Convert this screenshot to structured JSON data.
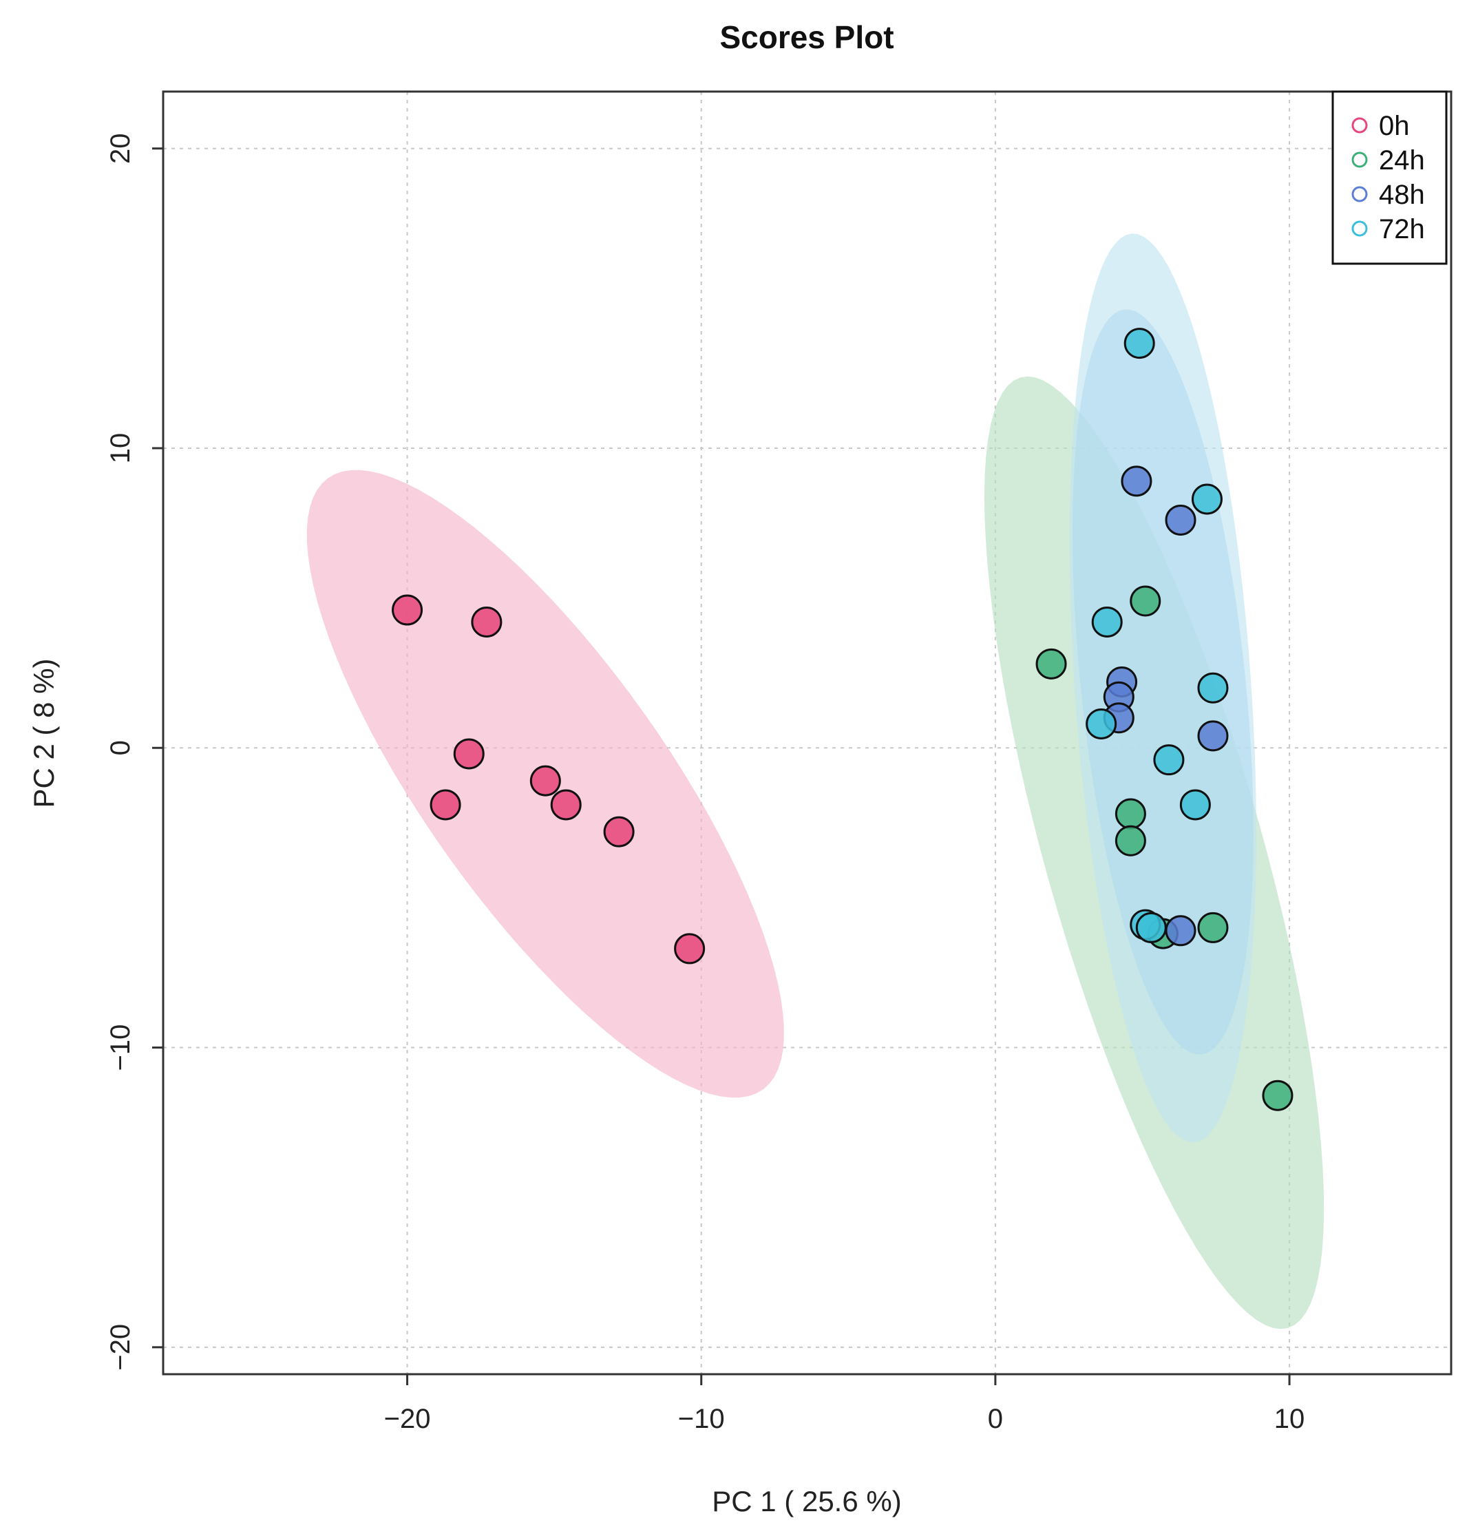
{
  "chart_data": {
    "type": "scatter",
    "title": "Scores Plot",
    "xlabel": "PC 1 ( 25.6 %)",
    "ylabel": "PC 2 ( 8 %)",
    "xlim": [
      -28.3,
      15.5
    ],
    "ylim": [
      -20.9,
      21.9
    ],
    "xticks": [
      -20,
      -10,
      0,
      10
    ],
    "yticks": [
      -20,
      -10,
      0,
      10,
      20
    ],
    "xtick_labels": [
      "−20",
      "−10",
      "0",
      "10"
    ],
    "ytick_labels": [
      "−20",
      "−10",
      "0",
      "10",
      "20"
    ],
    "grid": true,
    "legend_position": "top-right",
    "series": [
      {
        "name": "0h",
        "color": "#e8457a",
        "ellipse_color": "#f5b3c9",
        "ellipse": {
          "cx": -15.3,
          "cy": -1.2,
          "rx": 12.6,
          "ry": 4.1,
          "angle_deg": -54
        },
        "points": [
          [
            -20.0,
            4.6
          ],
          [
            -17.3,
            4.2
          ],
          [
            -17.9,
            -0.2
          ],
          [
            -18.7,
            -1.9
          ],
          [
            -15.3,
            -1.1
          ],
          [
            -14.6,
            -1.9
          ],
          [
            -12.8,
            -2.8
          ],
          [
            -10.4,
            -6.7
          ]
        ]
      },
      {
        "name": "24h",
        "color": "#3db07a",
        "ellipse_color": "#b6ddc0",
        "ellipse": {
          "cx": 5.4,
          "cy": -3.5,
          "rx": 16.5,
          "ry": 3.7,
          "angle_deg": -74
        },
        "points": [
          [
            1.9,
            2.8
          ],
          [
            5.1,
            4.9
          ],
          [
            4.6,
            -2.2
          ],
          [
            4.6,
            -3.1
          ],
          [
            5.7,
            -6.2
          ],
          [
            7.4,
            -6.0
          ],
          [
            9.6,
            -11.6
          ]
        ]
      },
      {
        "name": "48h",
        "color": "#5a7ed4",
        "ellipse_color": "#9ccbea",
        "ellipse": {
          "cx": 5.7,
          "cy": 2.2,
          "rx": 12.5,
          "ry": 2.8,
          "angle_deg": -84
        },
        "points": [
          [
            4.8,
            8.9
          ],
          [
            6.3,
            7.6
          ],
          [
            4.3,
            2.2
          ],
          [
            4.2,
            1.7
          ],
          [
            4.2,
            1.0
          ],
          [
            7.4,
            0.4
          ],
          [
            6.3,
            -6.1
          ]
        ]
      },
      {
        "name": "72h",
        "color": "#3cbfd8",
        "ellipse_color": "#bfe4f2",
        "ellipse": {
          "cx": 5.7,
          "cy": 2.0,
          "rx": 15.2,
          "ry": 3.0,
          "angle_deg": -86
        },
        "points": [
          [
            4.9,
            13.5
          ],
          [
            7.2,
            8.3
          ],
          [
            3.8,
            4.2
          ],
          [
            7.4,
            2.0
          ],
          [
            3.6,
            0.8
          ],
          [
            5.9,
            -0.4
          ],
          [
            6.8,
            -1.9
          ],
          [
            5.1,
            -5.9
          ],
          [
            5.3,
            -6.0
          ]
        ]
      }
    ]
  }
}
